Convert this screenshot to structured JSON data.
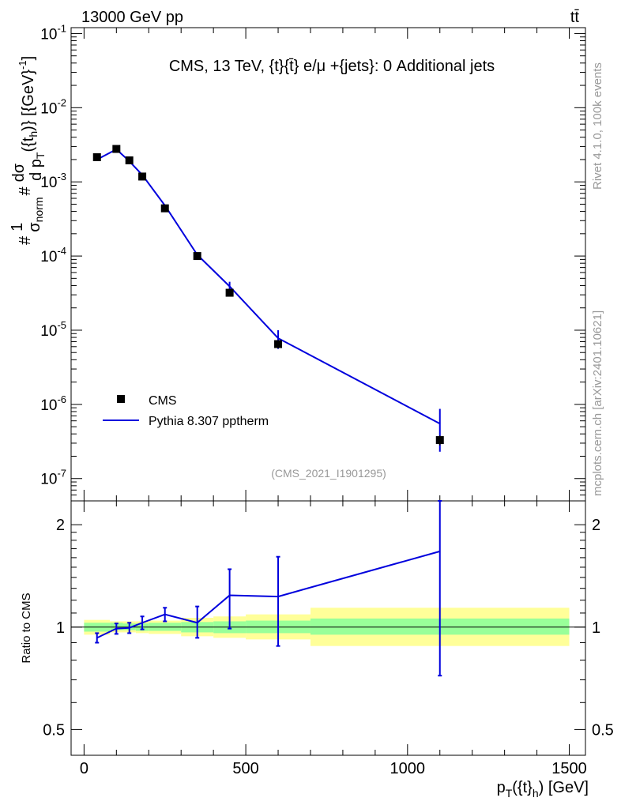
{
  "header": {
    "left": "13000 GeV pp",
    "right": "tt̄"
  },
  "side": {
    "rivet": "Rivet 4.1.0,  100k events",
    "site": "mcplots.cern.ch [arXiv:2401.10621]"
  },
  "labels": {
    "title": "CMS, 13 TeV, {t}{t̄} e/μ +{jets}: 0 Additional jets",
    "ylabel_top": "#1/σnorm #dσ/d pT({t}h)} [{GeV}-1]",
    "ylabel_prefix1": "#",
    "ylabel_one": "1",
    "ylabel_sigma": "σ",
    "ylabel_sub_norm": "norm",
    "ylabel_prefix2": "#",
    "ylabel_dsigma": "dσ",
    "ylabel_dpt": "d p",
    "ylabel_sub_T": "T",
    "ylabel_arg": "({t",
    "ylabel_sub_h": "h",
    "ylabel_tail": ")} [{GeV}",
    "ylabel_exp": "-1",
    "ylabel_close": "]",
    "ylabel_ratio": "Ratio to CMS",
    "xlabel_pre": "p",
    "xlabel_sub_T": "T",
    "xlabel_mid": "({t}",
    "xlabel_sub_h": "h",
    "xlabel_post": ") [GeV]",
    "analysis": "(CMS_2021_I1901295)"
  },
  "legend": {
    "data": "CMS",
    "mc": "Pythia 8.307 pptherm"
  },
  "colors": {
    "mc": "#0000dd",
    "data": "#000000",
    "band_inner": "#99ff99",
    "band_outer": "#ffff99",
    "axis_text": "#999999"
  },
  "chart_data": [
    {
      "type": "scatter",
      "panel": "main",
      "title": "CMS, 13 TeV, {t}{t̄} e/μ +{jets}: 0 Additional jets",
      "xlabel": "pT({t}h) [GeV]",
      "ylabel": "1/σnorm dσ/d pT({t}h) [GeV^-1]",
      "yscale": "log",
      "xlim": [
        -40,
        1550
      ],
      "ylim": [
        5e-08,
        0.12
      ],
      "y_ticks": [
        {
          "value": 1e-07,
          "base": "10",
          "exp": "-7"
        },
        {
          "value": 1e-06,
          "base": "10",
          "exp": "-6"
        },
        {
          "value": 1e-05,
          "base": "10",
          "exp": "-5"
        },
        {
          "value": 0.0001,
          "base": "10",
          "exp": "-4"
        },
        {
          "value": 0.001,
          "base": "10",
          "exp": "-3"
        },
        {
          "value": 0.01,
          "base": "10",
          "exp": "-2"
        },
        {
          "value": 0.1,
          "base": "10",
          "exp": "-1"
        }
      ],
      "series": [
        {
          "name": "CMS",
          "x": [
            40,
            100,
            140,
            180,
            250,
            350,
            450,
            600,
            1100
          ],
          "xerr_low": [
            40,
            20,
            20,
            20,
            50,
            50,
            50,
            100,
            400
          ],
          "xerr_high": [
            40,
            20,
            20,
            20,
            50,
            50,
            50,
            100,
            400
          ],
          "y": [
            0.00215,
            0.00278,
            0.00195,
            0.00118,
            0.00044,
            0.0001,
            3.2e-05,
            6.5e-06,
            3.3e-07
          ],
          "yerr_low": [
            9e-05,
            0.0001,
            7e-05,
            5e-05,
            2e-05,
            5e-06,
            2.5e-06,
            8e-07,
            5e-08
          ],
          "yerr_high": [
            9e-05,
            0.0001,
            7e-05,
            5e-05,
            2e-05,
            5e-06,
            2.5e-06,
            8e-07,
            5e-08
          ]
        },
        {
          "name": "Pythia 8.307 pptherm",
          "x": [
            40,
            100,
            140,
            180,
            250,
            350,
            450,
            600,
            1100
          ],
          "y": [
            0.002,
            0.00275,
            0.0019,
            0.00124,
            0.00048,
            0.000104,
            3.9e-05,
            7.8e-06,
            5.5e-07
          ],
          "yerr_low": [
            2e-05,
            3e-05,
            2e-05,
            2e-05,
            1e-05,
            4e-06,
            6e-06,
            2.2e-06,
            3.2e-07
          ],
          "yerr_high": [
            2e-05,
            3e-05,
            2e-05,
            2e-05,
            1e-05,
            4e-06,
            6e-06,
            2.2e-06,
            3.2e-07
          ]
        }
      ]
    },
    {
      "type": "line",
      "panel": "ratio",
      "xlabel": "pT({t}h) [GeV]",
      "ylabel": "Ratio to CMS",
      "yscale": "log",
      "xlim": [
        -40,
        1550
      ],
      "ylim": [
        0.42,
        2.35
      ],
      "x_ticks": [
        0,
        500,
        1000,
        1500
      ],
      "y_ticks": [
        0.5,
        1,
        2
      ],
      "bins": [
        {
          "lo": 0,
          "hi": 80,
          "inner": [
            0.97,
            1.03
          ],
          "outer": [
            0.95,
            1.05
          ]
        },
        {
          "lo": 80,
          "hi": 120,
          "inner": [
            0.98,
            1.03
          ],
          "outer": [
            0.965,
            1.04
          ]
        },
        {
          "lo": 120,
          "hi": 160,
          "inner": [
            0.98,
            1.025
          ],
          "outer": [
            0.965,
            1.04
          ]
        },
        {
          "lo": 160,
          "hi": 200,
          "inner": [
            0.975,
            1.025
          ],
          "outer": [
            0.96,
            1.04
          ]
        },
        {
          "lo": 200,
          "hi": 300,
          "inner": [
            0.975,
            1.03
          ],
          "outer": [
            0.955,
            1.045
          ]
        },
        {
          "lo": 300,
          "hi": 400,
          "inner": [
            0.965,
            1.035
          ],
          "outer": [
            0.94,
            1.065
          ]
        },
        {
          "lo": 400,
          "hi": 500,
          "inner": [
            0.96,
            1.04
          ],
          "outer": [
            0.93,
            1.075
          ]
        },
        {
          "lo": 500,
          "hi": 700,
          "inner": [
            0.96,
            1.045
          ],
          "outer": [
            0.92,
            1.09
          ]
        },
        {
          "lo": 700,
          "hi": 1500,
          "inner": [
            0.95,
            1.06
          ],
          "outer": [
            0.88,
            1.14
          ]
        }
      ],
      "series": [
        {
          "name": "Pythia 8.307 pptherm",
          "x": [
            40,
            100,
            140,
            180,
            250,
            350,
            450,
            600,
            1100
          ],
          "y": [
            0.93,
            0.99,
            0.995,
            1.03,
            1.09,
            1.03,
            1.24,
            1.23,
            1.67
          ],
          "yerr_low": [
            0.03,
            0.035,
            0.035,
            0.045,
            0.05,
            0.1,
            0.25,
            0.35,
            0.95
          ],
          "yerr_high": [
            0.03,
            0.035,
            0.035,
            0.045,
            0.05,
            0.12,
            0.24,
            0.38,
            0.95
          ]
        }
      ]
    }
  ]
}
